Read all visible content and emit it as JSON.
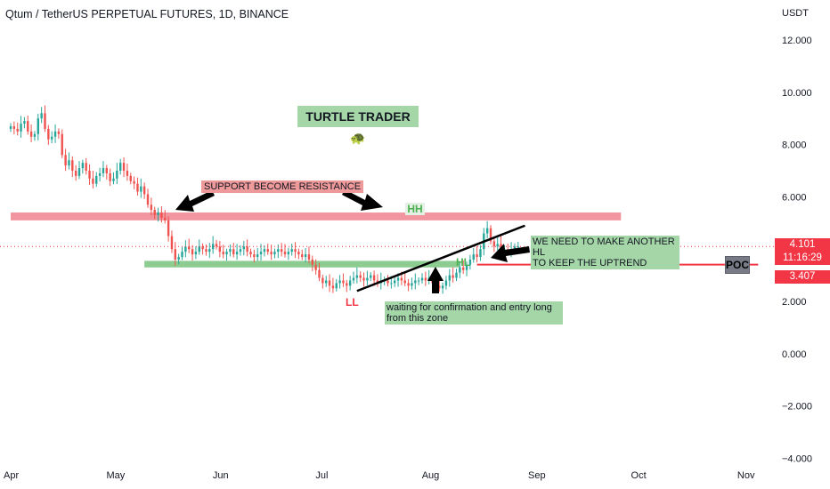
{
  "header": {
    "title": "Qtum / TetherUS PERPETUAL FUTURES, 1D, BINANCE",
    "currency": "USDT"
  },
  "price_scale": {
    "last_price": "4.101",
    "countdown": "11:16:29",
    "poc_price": "3.407",
    "poc_label": "POC",
    "last_price_color": "#f23645",
    "poc_price_color": "#f23645"
  },
  "annotations": {
    "title_tag": "TURTLE TRADER 🐢",
    "support_resistance": "SUPPORT BECOME RESISTANCE",
    "need_hl": "WE NEED TO MAKE ANOTHER HL\nTO KEEP THE UPTREND",
    "waiting": "waiting for confirmation and entry long\nfrom this zone",
    "hh": "HH",
    "hl": "HL",
    "ll": "LL"
  },
  "colors": {
    "up": "#26a69a",
    "down": "#ef5350",
    "resistance_zone": "#f08a93",
    "support_zone": "#81c784",
    "poc_line": "#f23645",
    "trendline": "#000000"
  },
  "chart_data": {
    "type": "candlestick",
    "title": "Qtum / TetherUS PERPETUAL FUTURES, 1D, BINANCE",
    "ylabel": "USDT",
    "ylim": [
      -4,
      13.3
    ],
    "y_ticks": [
      "12.000",
      "10.000",
      "8.000",
      "6.000",
      "4.000",
      "2.000",
      "0.000",
      "−2.000",
      "−4.000"
    ],
    "y_tick_values": [
      12,
      10,
      8,
      6,
      4,
      2,
      0,
      -2,
      -4
    ],
    "x_ticks": [
      "Apr",
      "May",
      "Jun",
      "Jul",
      "Aug",
      "Sep",
      "Oct",
      "Nov"
    ],
    "x_range": [
      "2022-04-01",
      "2022-11-05"
    ],
    "close_series": {
      "start": "2022-04-01",
      "interval": "1D",
      "values": [
        8.7,
        8.6,
        8.5,
        8.8,
        8.9,
        8.5,
        8.3,
        8.4,
        9.0,
        9.2,
        8.6,
        8.2,
        8.3,
        8.5,
        8.4,
        7.6,
        7.2,
        7.4,
        7.0,
        6.8,
        7.1,
        7.3,
        7.0,
        6.7,
        6.5,
        6.8,
        6.9,
        7.1,
        6.9,
        6.6,
        6.7,
        7.0,
        7.3,
        7.0,
        6.8,
        6.6,
        6.5,
        6.2,
        6.4,
        6.1,
        5.7,
        5.5,
        5.3,
        5.4,
        5.2,
        5.1,
        4.5,
        4.0,
        3.6,
        3.7,
        3.9,
        4.1,
        4.0,
        3.8,
        3.9,
        4.1,
        4.0,
        3.9,
        4.0,
        4.2,
        4.1,
        3.9,
        3.8,
        3.9,
        4.0,
        3.8,
        3.9,
        4.0,
        4.1,
        3.9,
        3.8,
        3.7,
        3.8,
        3.9,
        4.0,
        3.9,
        3.8,
        3.9,
        4.0,
        3.9,
        3.8,
        3.9,
        4.0,
        3.9,
        3.8,
        3.7,
        3.8,
        3.6,
        3.4,
        3.2,
        2.9,
        2.7,
        2.8,
        2.6,
        2.5,
        2.7,
        2.8,
        2.7,
        2.6,
        2.8,
        2.9,
        3.0,
        2.9,
        2.8,
        2.9,
        3.0,
        2.8,
        2.7,
        2.8,
        2.8,
        2.7,
        2.7,
        2.8,
        2.9,
        2.8,
        2.7,
        2.6,
        2.7,
        2.8,
        2.8,
        2.9,
        2.8,
        2.9,
        2.7,
        2.6,
        2.5,
        2.6,
        2.8,
        3.0,
        2.9,
        3.1,
        3.3,
        3.2,
        3.4,
        3.6,
        3.8,
        3.7,
        4.0,
        4.6,
        4.8,
        4.3,
        4.1,
        4.2,
        3.9,
        4.0,
        3.9,
        4.0,
        4.1,
        4.1
      ]
    },
    "zones": [
      {
        "name": "SUPPORT BECOME RESISTANCE",
        "from": "2022-04-01",
        "to": "2022-09-26",
        "low": 5.1,
        "high": 5.4
      },
      {
        "name": "HL",
        "from": "2022-05-10",
        "to": "2022-08-10",
        "low": 3.3,
        "high": 3.55
      }
    ],
    "lines": [
      {
        "name": "trendline",
        "x1": "2022-07-11",
        "y1": 2.4,
        "x2": "2022-08-29",
        "y2": 4.9
      },
      {
        "name": "POC",
        "x1": "2022-08-15",
        "y1": 3.407,
        "x2": "2022-11-05",
        "y2": 3.407
      }
    ],
    "last_price": 4.101,
    "poc": 3.407,
    "grid": false
  }
}
